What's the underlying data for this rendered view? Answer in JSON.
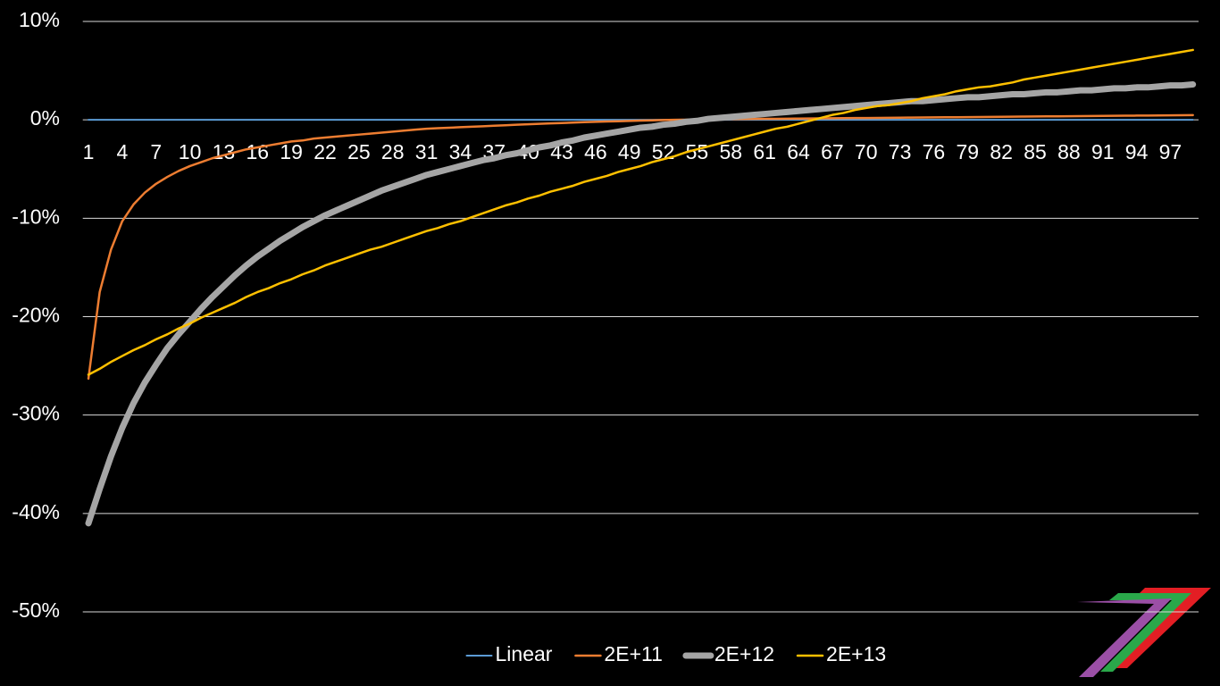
{
  "chart_data": {
    "type": "line",
    "categories": [
      1,
      null,
      null,
      4,
      null,
      null,
      7,
      null,
      null,
      10,
      null,
      null,
      13,
      null,
      null,
      16,
      null,
      null,
      19,
      null,
      null,
      22,
      null,
      null,
      25,
      null,
      null,
      28,
      null,
      null,
      31,
      null,
      null,
      34,
      null,
      null,
      37,
      null,
      null,
      40,
      null,
      null,
      43,
      null,
      null,
      46,
      null,
      null,
      49,
      null,
      null,
      52,
      null,
      null,
      55,
      null,
      null,
      58,
      null,
      null,
      61,
      null,
      null,
      64,
      null,
      null,
      67,
      null,
      null,
      70,
      null,
      null,
      73,
      null,
      null,
      76,
      null,
      null,
      79,
      null,
      null,
      82,
      null,
      null,
      85,
      null,
      null,
      88,
      null,
      null,
      91,
      null,
      null,
      94,
      null,
      null,
      97,
      null,
      null
    ],
    "series": [
      {
        "name": "Linear",
        "color": "#5b9bd5",
        "width": 2,
        "values": [
          0,
          0,
          0,
          0,
          0,
          0,
          0,
          0,
          0,
          0,
          0,
          0,
          0,
          0,
          0,
          0,
          0,
          0,
          0,
          0,
          0,
          0,
          0,
          0,
          0,
          0,
          0,
          0,
          0,
          0,
          0,
          0,
          0,
          0,
          0,
          0,
          0,
          0,
          0,
          0,
          0,
          0,
          0,
          0,
          0,
          0,
          0,
          0,
          0,
          0,
          0,
          0,
          0,
          0,
          0,
          0,
          0,
          0,
          0,
          0,
          0,
          0,
          0,
          0,
          0,
          0,
          0,
          0,
          0,
          0,
          0,
          0,
          0,
          0,
          0,
          0,
          0,
          0,
          0,
          0,
          0,
          0,
          0,
          0,
          0,
          0,
          0,
          0,
          0,
          0,
          0,
          0,
          0,
          0,
          0,
          0,
          0,
          0,
          0
        ]
      },
      {
        "name": "2E+11",
        "color": "#ed7d31",
        "width": 2.5,
        "values": [
          -26.3,
          -17.5,
          -13.2,
          -10.3,
          -8.6,
          -7.4,
          -6.5,
          -5.8,
          -5.2,
          -4.7,
          -4.3,
          -3.9,
          -3.6,
          -3.3,
          -3.0,
          -2.8,
          -2.6,
          -2.4,
          -2.2,
          -2.1,
          -1.9,
          -1.8,
          -1.7,
          -1.6,
          -1.5,
          -1.4,
          -1.3,
          -1.2,
          -1.1,
          -1.0,
          -0.9,
          -0.85,
          -0.8,
          -0.75,
          -0.7,
          -0.65,
          -0.6,
          -0.55,
          -0.5,
          -0.45,
          -0.4,
          -0.36,
          -0.32,
          -0.28,
          -0.24,
          -0.2,
          -0.17,
          -0.14,
          -0.11,
          -0.08,
          -0.05,
          -0.02,
          0,
          0.02,
          0.04,
          0.05,
          0.06,
          0.07,
          0.08,
          0.09,
          0.1,
          0.11,
          0.12,
          0.13,
          0.14,
          0.15,
          0.16,
          0.17,
          0.18,
          0.19,
          0.2,
          0.21,
          0.22,
          0.23,
          0.24,
          0.25,
          0.26,
          0.27,
          0.28,
          0.29,
          0.3,
          0.31,
          0.32,
          0.33,
          0.34,
          0.35,
          0.36,
          0.37,
          0.38,
          0.39,
          0.4,
          0.41,
          0.42,
          0.43,
          0.44,
          0.45,
          0.46,
          0.47,
          0.48
        ]
      },
      {
        "name": "2E+12",
        "color": "#a5a5a5",
        "width": 7,
        "values": [
          -41,
          -37.5,
          -34.2,
          -31.3,
          -28.8,
          -26.7,
          -24.9,
          -23.2,
          -21.8,
          -20.5,
          -19.2,
          -18,
          -16.9,
          -15.8,
          -14.8,
          -13.9,
          -13.1,
          -12.3,
          -11.6,
          -10.9,
          -10.3,
          -9.7,
          -9.2,
          -8.7,
          -8.2,
          -7.7,
          -7.2,
          -6.8,
          -6.4,
          -6.0,
          -5.6,
          -5.3,
          -5.0,
          -4.7,
          -4.4,
          -4.1,
          -3.9,
          -3.6,
          -3.4,
          -3.1,
          -2.8,
          -2.6,
          -2.3,
          -2.1,
          -1.8,
          -1.6,
          -1.4,
          -1.2,
          -1.0,
          -0.8,
          -0.7,
          -0.5,
          -0.4,
          -0.2,
          -0.1,
          0.1,
          0.2,
          0.3,
          0.4,
          0.5,
          0.6,
          0.7,
          0.8,
          0.9,
          1.0,
          1.1,
          1.2,
          1.3,
          1.4,
          1.5,
          1.6,
          1.7,
          1.8,
          1.9,
          1.9,
          2.0,
          2.1,
          2.2,
          2.3,
          2.3,
          2.4,
          2.5,
          2.6,
          2.6,
          2.7,
          2.8,
          2.8,
          2.9,
          3.0,
          3.0,
          3.1,
          3.2,
          3.2,
          3.3,
          3.3,
          3.4,
          3.5,
          3.5,
          3.6
        ]
      },
      {
        "name": "2E+13",
        "color": "#ffc000",
        "width": 2.5,
        "values": [
          -25.9,
          -25.3,
          -24.6,
          -24.0,
          -23.4,
          -22.9,
          -22.3,
          -21.8,
          -21.2,
          -20.7,
          -20.1,
          -19.6,
          -19.1,
          -18.6,
          -18.0,
          -17.5,
          -17.1,
          -16.6,
          -16.2,
          -15.7,
          -15.3,
          -14.8,
          -14.4,
          -14.0,
          -13.6,
          -13.2,
          -12.9,
          -12.5,
          -12.1,
          -11.7,
          -11.3,
          -11.0,
          -10.6,
          -10.3,
          -9.9,
          -9.5,
          -9.1,
          -8.7,
          -8.4,
          -8.0,
          -7.7,
          -7.3,
          -7.0,
          -6.7,
          -6.3,
          -6.0,
          -5.7,
          -5.3,
          -5.0,
          -4.7,
          -4.3,
          -4.0,
          -3.7,
          -3.3,
          -3.0,
          -2.7,
          -2.4,
          -2.1,
          -1.8,
          -1.5,
          -1.2,
          -0.9,
          -0.7,
          -0.4,
          -0.1,
          0.2,
          0.5,
          0.7,
          1.0,
          1.2,
          1.4,
          1.5,
          1.7,
          1.9,
          2.2,
          2.4,
          2.6,
          2.9,
          3.1,
          3.3,
          3.4,
          3.6,
          3.8,
          4.1,
          4.3,
          4.5,
          4.7,
          4.9,
          5.1,
          5.3,
          5.5,
          5.7,
          5.9,
          6.1,
          6.3,
          6.5,
          6.7,
          6.9,
          7.1
        ]
      }
    ],
    "ylim": [
      -50,
      10
    ],
    "yticks": [
      {
        "value": -50,
        "label": "-50%"
      },
      {
        "value": -40,
        "label": "-40%"
      },
      {
        "value": -30,
        "label": "-30%"
      },
      {
        "value": -20,
        "label": "-20%"
      },
      {
        "value": -10,
        "label": "-10%"
      },
      {
        "value": 0,
        "label": "0%"
      },
      {
        "value": 10,
        "label": "10%"
      }
    ],
    "grid": true,
    "legend": "bottom"
  }
}
